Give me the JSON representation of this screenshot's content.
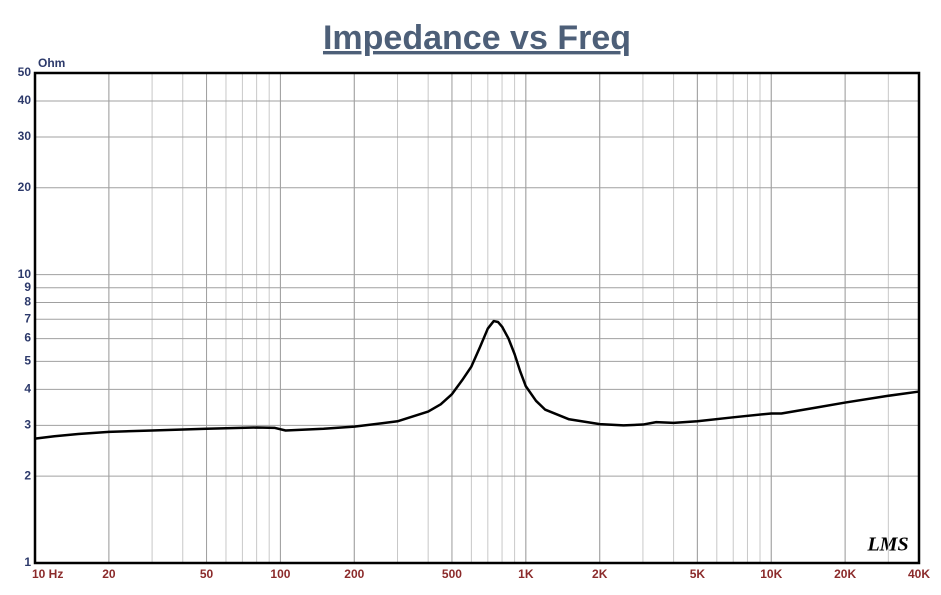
{
  "chart_data": {
    "type": "line",
    "title": "Impedance vs Freq",
    "y_label": "Ohm",
    "annotation": "LMS",
    "log_x": true,
    "log_y": true,
    "grid": true,
    "xlim": [
      10,
      40000
    ],
    "ylim": [
      1,
      50
    ],
    "xticks": [
      {
        "value": 10,
        "label": "10 Hz"
      },
      20,
      50,
      100,
      200,
      500,
      {
        "value": 1000,
        "label": "1K"
      },
      {
        "value": 2000,
        "label": "2K"
      },
      {
        "value": 5000,
        "label": "5K"
      },
      {
        "value": 10000,
        "label": "10K"
      },
      {
        "value": 20000,
        "label": "20K"
      },
      {
        "value": 40000,
        "label": "40K"
      }
    ],
    "yticks": [
      1,
      2,
      3,
      4,
      5,
      6,
      7,
      8,
      9,
      10,
      20,
      30,
      40,
      50
    ],
    "x": [
      10,
      12,
      15,
      20,
      30,
      50,
      80,
      95,
      105,
      150,
      200,
      300,
      400,
      450,
      500,
      550,
      600,
      650,
      700,
      740,
      770,
      800,
      850,
      900,
      950,
      1000,
      1100,
      1200,
      1500,
      2000,
      2500,
      3000,
      3400,
      4000,
      5000,
      7000,
      10000,
      11000,
      15000,
      20000,
      30000,
      40000
    ],
    "series": [
      {
        "name": "Impedance",
        "color": "#000000",
        "values": [
          2.7,
          2.75,
          2.8,
          2.85,
          2.88,
          2.92,
          2.95,
          2.94,
          2.88,
          2.92,
          2.97,
          3.1,
          3.35,
          3.55,
          3.85,
          4.3,
          4.8,
          5.6,
          6.5,
          6.9,
          6.85,
          6.6,
          6.0,
          5.3,
          4.6,
          4.1,
          3.65,
          3.4,
          3.15,
          3.03,
          3.0,
          3.02,
          3.08,
          3.06,
          3.1,
          3.2,
          3.3,
          3.3,
          3.45,
          3.6,
          3.8,
          3.93
        ]
      }
    ]
  }
}
